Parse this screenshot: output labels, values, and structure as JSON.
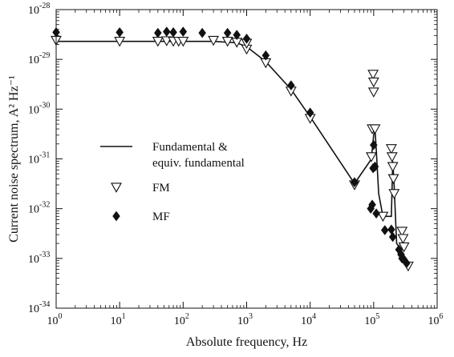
{
  "chart_data": {
    "type": "line",
    "xlabel": "Absolute frequency, Hz",
    "ylabel": "Current noise spectrum, A² Hz⁻¹",
    "xscale": "log",
    "yscale": "log",
    "xlim": [
      1,
      1000000
    ],
    "ylim": [
      1e-34,
      1e-28
    ],
    "x_ticks": [
      {
        "value": 1,
        "base": "10",
        "exp": "0"
      },
      {
        "value": 10,
        "base": "10",
        "exp": "1"
      },
      {
        "value": 100,
        "base": "10",
        "exp": "2"
      },
      {
        "value": 1000,
        "base": "10",
        "exp": "3"
      },
      {
        "value": 10000,
        "base": "10",
        "exp": "4"
      },
      {
        "value": 100000,
        "base": "10",
        "exp": "5"
      },
      {
        "value": 1000000,
        "base": "10",
        "exp": "6"
      }
    ],
    "y_ticks": [
      {
        "value": 1e-28,
        "base": "10",
        "exp": "-28"
      },
      {
        "value": 1e-29,
        "base": "10",
        "exp": "-29"
      },
      {
        "value": 1e-30,
        "base": "10",
        "exp": "-30"
      },
      {
        "value": 1e-31,
        "base": "10",
        "exp": "-31"
      },
      {
        "value": 1e-32,
        "base": "10",
        "exp": "-32"
      },
      {
        "value": 1e-33,
        "base": "10",
        "exp": "-33"
      },
      {
        "value": 1e-34,
        "base": "10",
        "exp": "-34"
      }
    ],
    "grid": false,
    "legend_position": "center-left",
    "series": [
      {
        "name": "Fundamental & equiv. fundamental",
        "legend_lines": [
          "Fundamental &",
          "equiv. fundamental"
        ],
        "kind": "line",
        "color": "#111111",
        "points": [
          [
            1,
            2.3e-29
          ],
          [
            100,
            2.3e-29
          ],
          [
            300,
            2.3e-29
          ],
          [
            700,
            2.15e-29
          ],
          [
            1000,
            1.8e-29
          ],
          [
            2000,
            9e-30
          ],
          [
            5000,
            2.5e-30
          ],
          [
            10000,
            7e-31
          ],
          [
            50000,
            3.2e-32
          ],
          [
            90000,
            9.5e-32
          ],
          [
            95000,
            1.5e-31
          ],
          [
            100000,
            3e-31
          ],
          [
            105000,
            4e-31
          ],
          [
            110000,
            1.5e-31
          ],
          [
            120000,
            2e-32
          ],
          [
            140000,
            7e-33
          ],
          [
            190000,
            7e-33
          ],
          [
            200000,
            9e-32
          ],
          [
            210000,
            3e-32
          ],
          [
            230000,
            2e-33
          ],
          [
            270000,
            1.5e-33
          ],
          [
            300000,
            1.1e-33
          ],
          [
            350000,
            7e-34
          ]
        ]
      },
      {
        "name": "FM",
        "kind": "scatter",
        "marker": "triangle-down",
        "color": "#111111",
        "points": [
          [
            1,
            2.4e-29
          ],
          [
            10,
            2.3e-29
          ],
          [
            40,
            2.3e-29
          ],
          [
            55,
            2.35e-29
          ],
          [
            70,
            2.3e-29
          ],
          [
            85,
            2.3e-29
          ],
          [
            100,
            2.3e-29
          ],
          [
            300,
            2.4e-29
          ],
          [
            500,
            2.3e-29
          ],
          [
            700,
            2.2e-29
          ],
          [
            1000,
            1.6e-29
          ],
          [
            1000,
            2.1e-29
          ],
          [
            2000,
            8.5e-30
          ],
          [
            5000,
            2.3e-30
          ],
          [
            10000,
            6.5e-31
          ],
          [
            50000,
            3e-32
          ],
          [
            92000,
            1.1e-31
          ],
          [
            95000,
            4e-31
          ],
          [
            98000,
            5e-30
          ],
          [
            100000,
            3.5e-30
          ],
          [
            100000,
            2.2e-30
          ],
          [
            105000,
            4e-31
          ],
          [
            140000,
            7e-33
          ],
          [
            190000,
            1.6e-31
          ],
          [
            195000,
            1.1e-31
          ],
          [
            200000,
            7e-32
          ],
          [
            205000,
            4e-32
          ],
          [
            210000,
            2e-32
          ],
          [
            280000,
            3.5e-33
          ],
          [
            290000,
            2.5e-33
          ],
          [
            300000,
            1.7e-33
          ],
          [
            350000,
            7e-34
          ]
        ]
      },
      {
        "name": "MF",
        "kind": "scatter",
        "marker": "diamond",
        "color": "#111111",
        "points": [
          [
            1,
            3.5e-29
          ],
          [
            10,
            3.5e-29
          ],
          [
            40,
            3.4e-29
          ],
          [
            55,
            3.6e-29
          ],
          [
            70,
            3.5e-29
          ],
          [
            100,
            3.6e-29
          ],
          [
            200,
            3.4e-29
          ],
          [
            500,
            3.4e-29
          ],
          [
            700,
            3.1e-29
          ],
          [
            1000,
            2.6e-29
          ],
          [
            2000,
            1.2e-29
          ],
          [
            5000,
            3e-30
          ],
          [
            10000,
            8.5e-31
          ],
          [
            50000,
            3.4e-32
          ],
          [
            90000,
            1e-32
          ],
          [
            95000,
            1.2e-32
          ],
          [
            98000,
            6.5e-32
          ],
          [
            100000,
            1.9e-31
          ],
          [
            105000,
            7e-32
          ],
          [
            110000,
            8e-33
          ],
          [
            150000,
            3.7e-33
          ],
          [
            190000,
            3.8e-33
          ],
          [
            200000,
            2.7e-33
          ],
          [
            250000,
            1.5e-33
          ],
          [
            270000,
            1.2e-33
          ],
          [
            280000,
            1e-33
          ],
          [
            300000,
            9.5e-34
          ],
          [
            330000,
            8e-34
          ]
        ]
      }
    ]
  }
}
